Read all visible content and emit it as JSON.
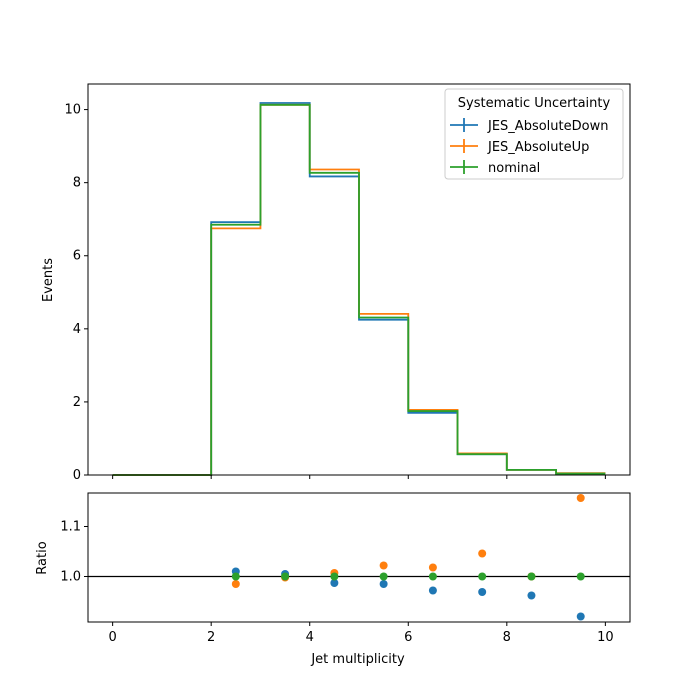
{
  "chart_data": {
    "type": "step",
    "xlabel": "Jet multiplicity",
    "xlim": [
      -0.5,
      10.5
    ],
    "x_ticks": [
      0,
      2,
      4,
      6,
      8,
      10
    ],
    "bin_edges": [
      0,
      1,
      2,
      3,
      4,
      5,
      6,
      7,
      8,
      9,
      10
    ],
    "colors": {
      "JES_AbsoluteDown": "#1f77b4",
      "JES_AbsoluteUp": "#ff7f0e",
      "nominal": "#2ca02c"
    },
    "top_panel": {
      "ylabel": "Events",
      "ylim": [
        0,
        10.7
      ],
      "y_ticks": [
        0,
        2,
        4,
        6,
        8,
        10
      ],
      "legend": {
        "title": "Systematic Uncertainty",
        "placement": "top-right"
      },
      "series": [
        {
          "name": "JES_AbsoluteDown",
          "values": [
            0,
            0,
            6.92,
            10.18,
            8.17,
            4.25,
            1.7,
            0.57,
            0.14,
            0.04
          ]
        },
        {
          "name": "JES_AbsoluteUp",
          "values": [
            0,
            0,
            6.75,
            10.13,
            8.36,
            4.41,
            1.78,
            0.59,
            0.14,
            0.05
          ]
        },
        {
          "name": "nominal",
          "values": [
            0,
            0,
            6.85,
            10.13,
            8.27,
            4.31,
            1.75,
            0.57,
            0.14,
            0.04
          ]
        }
      ]
    },
    "bottom_panel": {
      "ylabel": "Ratio",
      "ylim": [
        0.909,
        1.167
      ],
      "y_ticks": [
        1.0,
        1.1
      ],
      "y_tick_labels": [
        "1.0",
        "1.1"
      ],
      "reference_line": 1.0,
      "series": [
        {
          "name": "JES_AbsoluteDown",
          "x": [
            2.5,
            3.5,
            4.5,
            5.5,
            6.5,
            7.5,
            8.5,
            9.5
          ],
          "values": [
            1.01,
            1.005,
            0.987,
            0.985,
            0.972,
            0.969,
            0.962,
            0.92
          ]
        },
        {
          "name": "JES_AbsoluteUp",
          "x": [
            2.5,
            3.5,
            4.5,
            5.5,
            6.5,
            7.5,
            8.5,
            9.5
          ],
          "values": [
            0.985,
            0.998,
            1.007,
            1.022,
            1.018,
            1.046,
            1.0,
            1.157
          ]
        },
        {
          "name": "nominal",
          "x": [
            2.5,
            3.5,
            4.5,
            5.5,
            6.5,
            7.5,
            8.5,
            9.5
          ],
          "values": [
            1.0,
            1.0,
            1.0,
            1.0,
            1.0,
            1.0,
            1.0,
            1.0
          ]
        }
      ]
    }
  }
}
